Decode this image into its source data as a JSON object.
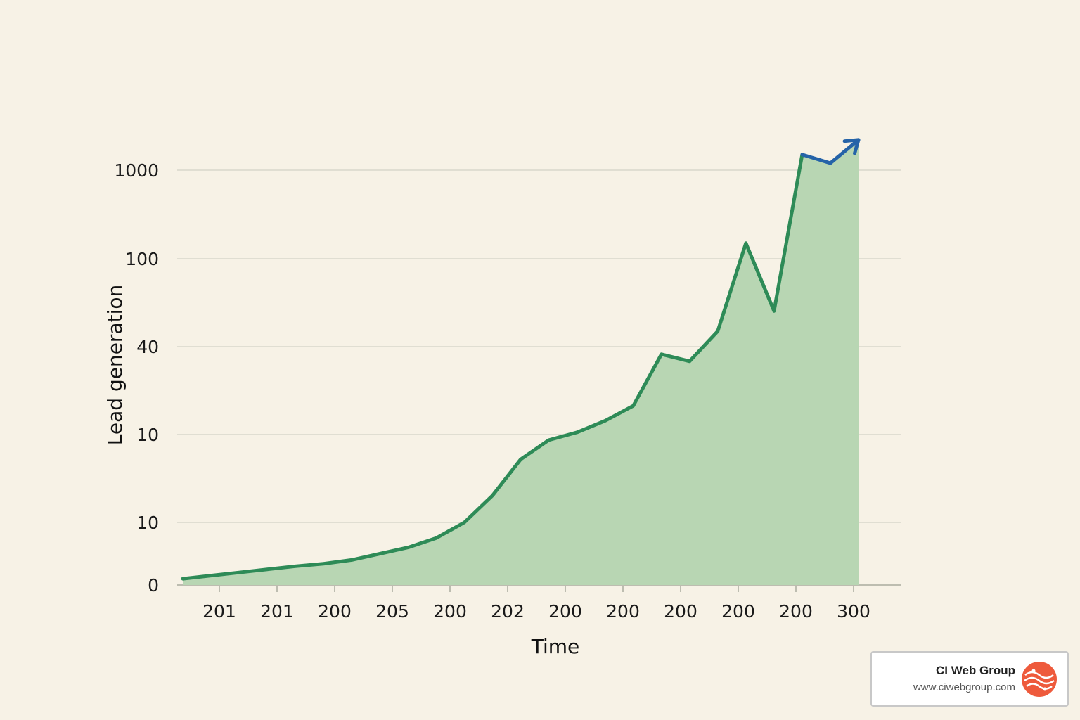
{
  "chart_data": {
    "type": "area",
    "xlabel": "Time",
    "ylabel": "Lead generation",
    "y_tick_labels": [
      "0",
      "10",
      "10",
      "40",
      "100",
      "1000"
    ],
    "x_tick_labels": [
      "201",
      "201",
      "200",
      "205",
      "200",
      "202",
      "200",
      "200",
      "200",
      "200",
      "200",
      "300"
    ],
    "y_scale_note": "non-linear (irregular) axis",
    "grid": true,
    "legend": "none",
    "series": [
      {
        "values": [
          [
            0.0,
            0.1
          ],
          [
            0.5,
            0.15
          ],
          [
            1.0,
            0.2
          ],
          [
            1.5,
            0.25
          ],
          [
            2.0,
            0.3
          ],
          [
            2.5,
            0.34
          ],
          [
            3.0,
            0.4
          ],
          [
            3.5,
            0.5
          ],
          [
            4.0,
            0.6
          ],
          [
            4.5,
            0.75
          ],
          [
            5.0,
            1.0
          ],
          [
            5.5,
            1.4
          ],
          [
            6.0,
            2.2
          ],
          [
            6.5,
            2.8
          ],
          [
            7.0,
            3.2
          ],
          [
            7.5,
            4.5
          ],
          [
            8.0,
            7.0
          ],
          [
            8.5,
            32
          ],
          [
            9.0,
            26
          ],
          [
            9.5,
            47
          ],
          [
            10.0,
            150
          ],
          [
            10.5,
            58
          ],
          [
            11.0,
            1500
          ],
          [
            11.5,
            1200
          ],
          [
            12.0,
            2200
          ]
        ]
      }
    ],
    "colors": {
      "line": "#2e8b57",
      "fill": "#b8d6b3",
      "arrow": "#2563a8"
    }
  },
  "brand": {
    "name": "CI Web Group",
    "url": "www.ciwebgroup.com"
  }
}
